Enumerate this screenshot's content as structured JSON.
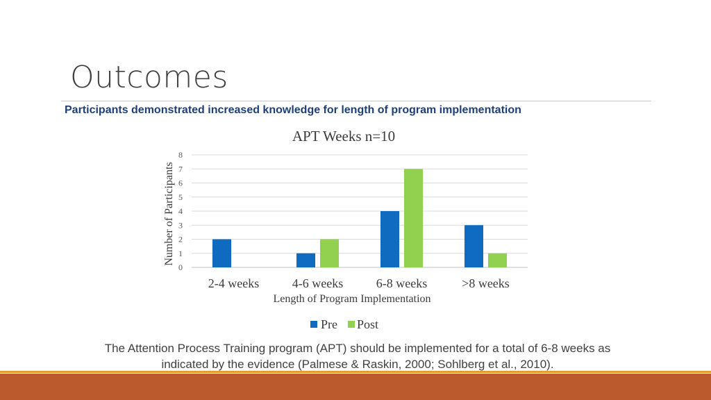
{
  "slide": {
    "title": "Outcomes",
    "subtitle": "Participants demonstrated increased knowledge for length of program implementation",
    "body_line1": "The Attention Process Training program (APT) should be implemented for a total of 6-8 weeks as",
    "body_line2": "indicated by the evidence (Palmese & Raskin, 2000; Sohlberg et al., 2010)."
  },
  "colors": {
    "pre": "#0e6bbf",
    "post": "#92d050",
    "footer": "#bb5a2c",
    "footer_accent": "#e89a2c",
    "subtitle": "#1f3f7a"
  },
  "chart_data": {
    "type": "bar",
    "title": "APT Weeks n=10",
    "xlabel": "Length of Program Implementation",
    "ylabel": "Number of Participants",
    "categories": [
      "2-4 weeks",
      "4-6 weeks",
      "6-8 weeks",
      ">8 weeks"
    ],
    "series": [
      {
        "name": "Pre",
        "values": [
          2,
          1,
          4,
          3
        ]
      },
      {
        "name": "Post",
        "values": [
          0,
          2,
          7,
          1
        ]
      }
    ],
    "ylim": [
      0,
      8
    ],
    "yticks": [
      0,
      1,
      2,
      3,
      4,
      5,
      6,
      7,
      8
    ],
    "grid": true,
    "legend": "bottom"
  }
}
